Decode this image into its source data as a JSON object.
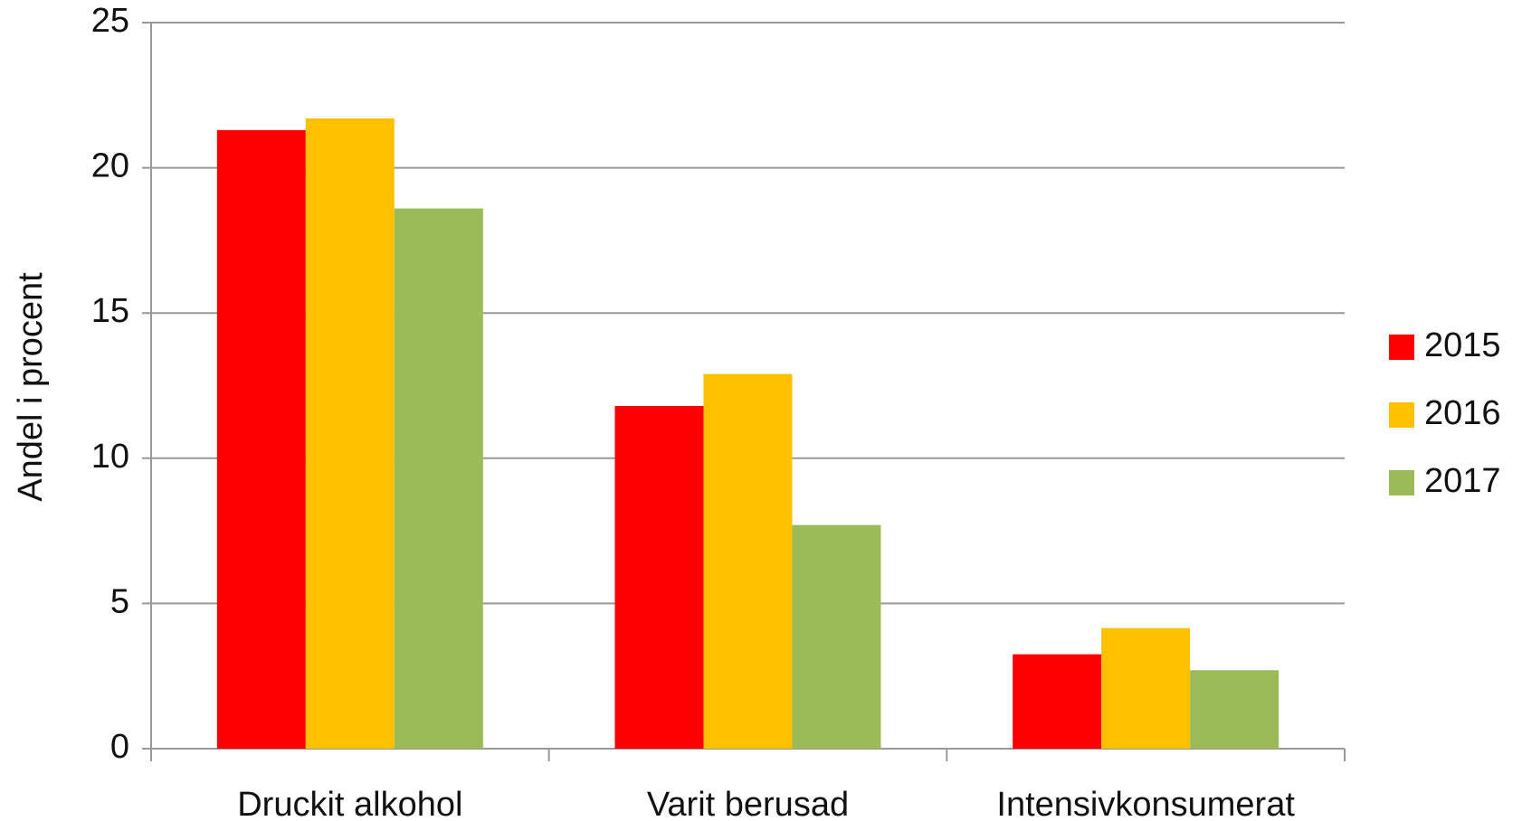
{
  "chart_data": {
    "type": "bar",
    "y_label": "Andel i procent",
    "categories": [
      "Druckit alkohol",
      "Varit berusad",
      "Intensivkonsumerat"
    ],
    "series": [
      {
        "name": "2015",
        "color": "#ff0000",
        "values": [
          21.3,
          11.8,
          3.25
        ]
      },
      {
        "name": "2016",
        "color": "#ffc000",
        "values": [
          21.7,
          12.9,
          4.15
        ]
      },
      {
        "name": "2017",
        "color": "#9bbb59",
        "values": [
          18.6,
          7.7,
          2.7
        ]
      }
    ],
    "ylim": [
      0,
      25
    ],
    "yticks": [
      0,
      5,
      10,
      15,
      20,
      25
    ],
    "grid": true,
    "legend": "right"
  }
}
